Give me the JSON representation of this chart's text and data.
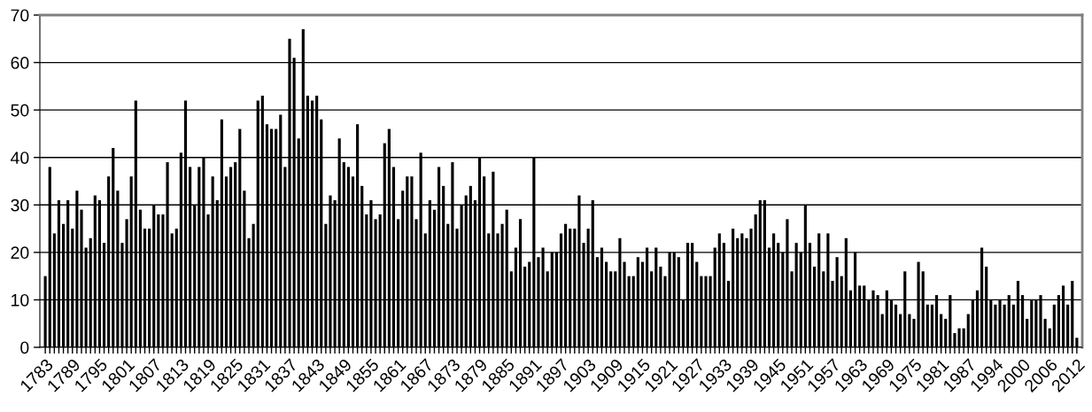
{
  "chart_data": {
    "type": "bar",
    "categories": [
      "1783",
      null,
      null,
      null,
      null,
      null,
      "1789",
      null,
      null,
      null,
      null,
      null,
      "1795",
      null,
      null,
      null,
      null,
      null,
      "1801",
      null,
      null,
      null,
      null,
      null,
      "1807",
      null,
      null,
      null,
      null,
      null,
      "1813",
      null,
      null,
      null,
      null,
      null,
      "1819",
      null,
      null,
      null,
      null,
      null,
      "1825",
      null,
      null,
      null,
      null,
      null,
      "1831",
      null,
      null,
      null,
      null,
      null,
      "1837",
      null,
      null,
      null,
      null,
      null,
      "1843",
      null,
      null,
      null,
      null,
      null,
      "1849",
      null,
      null,
      null,
      null,
      null,
      "1855",
      null,
      null,
      null,
      null,
      null,
      "1861",
      null,
      null,
      null,
      null,
      null,
      "1867",
      null,
      null,
      null,
      null,
      null,
      "1873",
      null,
      null,
      null,
      null,
      null,
      "1879",
      null,
      null,
      null,
      null,
      null,
      "1885",
      null,
      null,
      null,
      null,
      null,
      "1891",
      null,
      null,
      null,
      null,
      null,
      "1897",
      null,
      null,
      null,
      null,
      null,
      "1903",
      null,
      null,
      null,
      null,
      null,
      "1909",
      null,
      null,
      null,
      null,
      null,
      "1915",
      null,
      null,
      null,
      null,
      null,
      "1921",
      null,
      null,
      null,
      null,
      null,
      "1927",
      null,
      null,
      null,
      null,
      null,
      "1933",
      null,
      null,
      null,
      null,
      null,
      "1939",
      null,
      null,
      null,
      null,
      null,
      "1945",
      null,
      null,
      null,
      null,
      null,
      "1951",
      null,
      null,
      null,
      null,
      null,
      "1957",
      null,
      null,
      null,
      null,
      null,
      "1963",
      null,
      null,
      null,
      null,
      null,
      "1969",
      null,
      null,
      null,
      null,
      null,
      "1975",
      null,
      null,
      null,
      null,
      null,
      "1981",
      null,
      null,
      null,
      null,
      null,
      "1987",
      null,
      null,
      null,
      null,
      null,
      "1994",
      null,
      null,
      null,
      null,
      null,
      "2000",
      null,
      null,
      null,
      null,
      null,
      "2006",
      null,
      null,
      null,
      null,
      null,
      "2012"
    ],
    "values": [
      15,
      38,
      24,
      31,
      26,
      31,
      25,
      33,
      29,
      21,
      23,
      32,
      31,
      22,
      36,
      42,
      33,
      22,
      27,
      36,
      52,
      29,
      25,
      25,
      30,
      28,
      28,
      39,
      24,
      25,
      41,
      52,
      38,
      30,
      38,
      40,
      28,
      36,
      31,
      48,
      36,
      38,
      39,
      46,
      33,
      23,
      26,
      52,
      53,
      47,
      46,
      46,
      49,
      38,
      65,
      61,
      44,
      67,
      53,
      52,
      53,
      48,
      26,
      32,
      31,
      44,
      39,
      38,
      36,
      47,
      34,
      28,
      31,
      27,
      28,
      43,
      46,
      38,
      27,
      33,
      36,
      36,
      27,
      41,
      24,
      31,
      29,
      38,
      34,
      26,
      39,
      25,
      30,
      32,
      34,
      31,
      40,
      36,
      24,
      37,
      24,
      26,
      29,
      16,
      21,
      27,
      17,
      18,
      40,
      19,
      21,
      16,
      20,
      20,
      24,
      26,
      25,
      25,
      32,
      22,
      25,
      31,
      19,
      21,
      18,
      16,
      16,
      23,
      18,
      15,
      15,
      19,
      18,
      21,
      16,
      21,
      17,
      15,
      20,
      20,
      19,
      10,
      22,
      22,
      18,
      15,
      15,
      15,
      21,
      24,
      22,
      14,
      25,
      23,
      24,
      23,
      25,
      28,
      31,
      31,
      21,
      24,
      22,
      20,
      27,
      16,
      22,
      20,
      30,
      22,
      17,
      24,
      16,
      24,
      14,
      19,
      15,
      23,
      12,
      20,
      13,
      13,
      10,
      12,
      11,
      7,
      12,
      10,
      9,
      7,
      16,
      7,
      6,
      18,
      16,
      9,
      9,
      11,
      7,
      6,
      11,
      3,
      4,
      4,
      7,
      10,
      12,
      21,
      17,
      10,
      9,
      10,
      9,
      11,
      9,
      14,
      11,
      6,
      10,
      10,
      11,
      6,
      4,
      9,
      11,
      13,
      9,
      14,
      2
    ],
    "color": "#000000",
    "ylim": [
      0,
      70
    ],
    "yticks": [
      0,
      10,
      20,
      30,
      40,
      50,
      60,
      70
    ],
    "grid": "y"
  }
}
